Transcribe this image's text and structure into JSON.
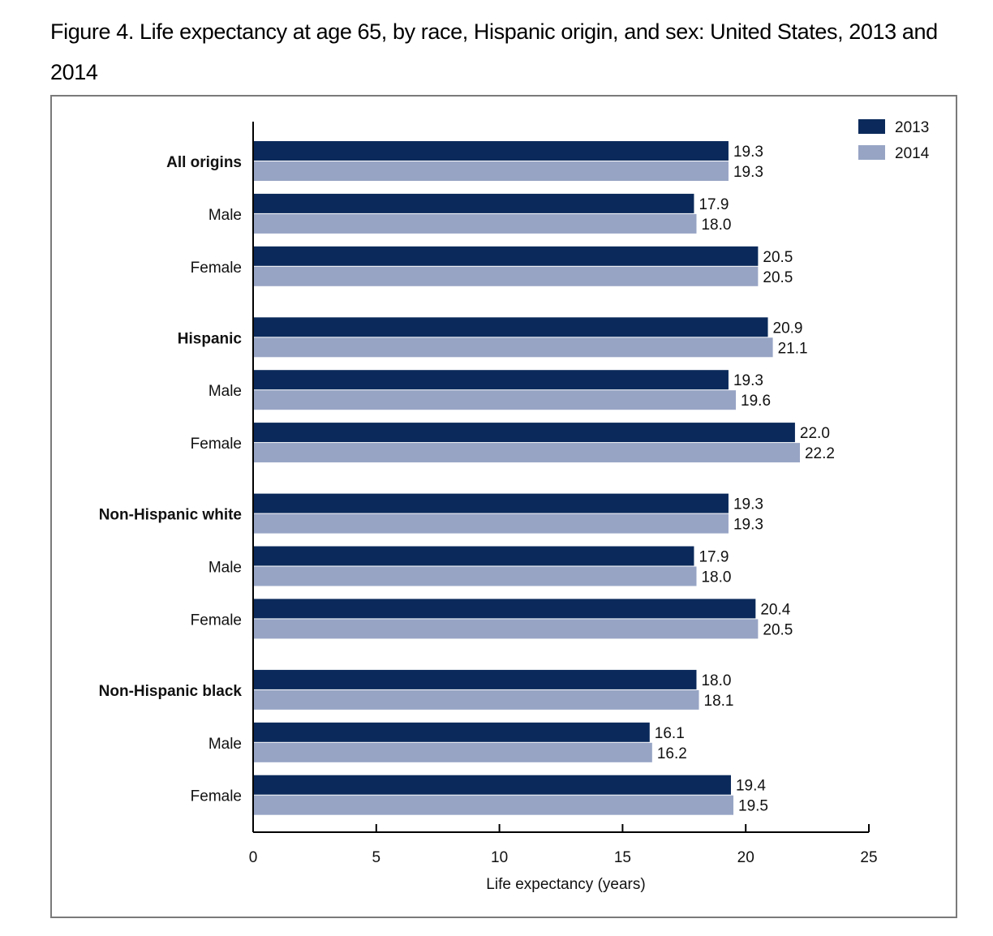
{
  "title": "Figure 4. Life expectancy at age 65, by race, Hispanic origin, and sex: United States, 2013 and 2014",
  "title_line1": "Figure 4. Life expectancy at age 65, by race, Hispanic origin, and sex: United States, 2013 and",
  "title_line2": "2014",
  "colors": {
    "series_2013": "#0b2a5b",
    "series_2014": "#97a4c4",
    "axis": "#000000",
    "frame": "#7a7a7a"
  },
  "chart_data": {
    "type": "bar",
    "orientation": "horizontal",
    "xlabel": "Life expectancy (years)",
    "ylabel": "",
    "xlim": [
      0,
      25
    ],
    "xticks": [
      0,
      5,
      10,
      15,
      20,
      25
    ],
    "legend_position": "top-right",
    "grid": false,
    "categories": [
      {
        "label": "All origins",
        "bold": true
      },
      {
        "label": "Male",
        "bold": false
      },
      {
        "label": "Female",
        "bold": false
      },
      {
        "label": "Hispanic",
        "bold": true
      },
      {
        "label": "Male",
        "bold": false
      },
      {
        "label": "Female",
        "bold": false
      },
      {
        "label": "Non-Hispanic white",
        "bold": true
      },
      {
        "label": "Male",
        "bold": false
      },
      {
        "label": "Female",
        "bold": false
      },
      {
        "label": "Non-Hispanic black",
        "bold": true
      },
      {
        "label": "Male",
        "bold": false
      },
      {
        "label": "Female",
        "bold": false
      }
    ],
    "series": [
      {
        "name": "2013",
        "values": [
          19.3,
          17.9,
          20.5,
          20.9,
          19.3,
          22.0,
          19.3,
          17.9,
          20.4,
          18.0,
          16.1,
          19.4
        ],
        "labels": [
          "19.3",
          "17.9",
          "20.5",
          "20.9",
          "19.3",
          "22.0",
          "19.3",
          "17.9",
          "20.4",
          "18.0",
          "16.1",
          "19.4"
        ]
      },
      {
        "name": "2014",
        "values": [
          19.3,
          18.0,
          20.5,
          21.1,
          19.6,
          22.2,
          19.3,
          18.0,
          20.5,
          18.1,
          16.2,
          19.5
        ],
        "labels": [
          "19.3",
          "18.0",
          "20.5",
          "21.1",
          "19.6",
          "22.2",
          "19.3",
          "18.0",
          "20.5",
          "18.1",
          "16.2",
          "19.5"
        ]
      }
    ]
  }
}
